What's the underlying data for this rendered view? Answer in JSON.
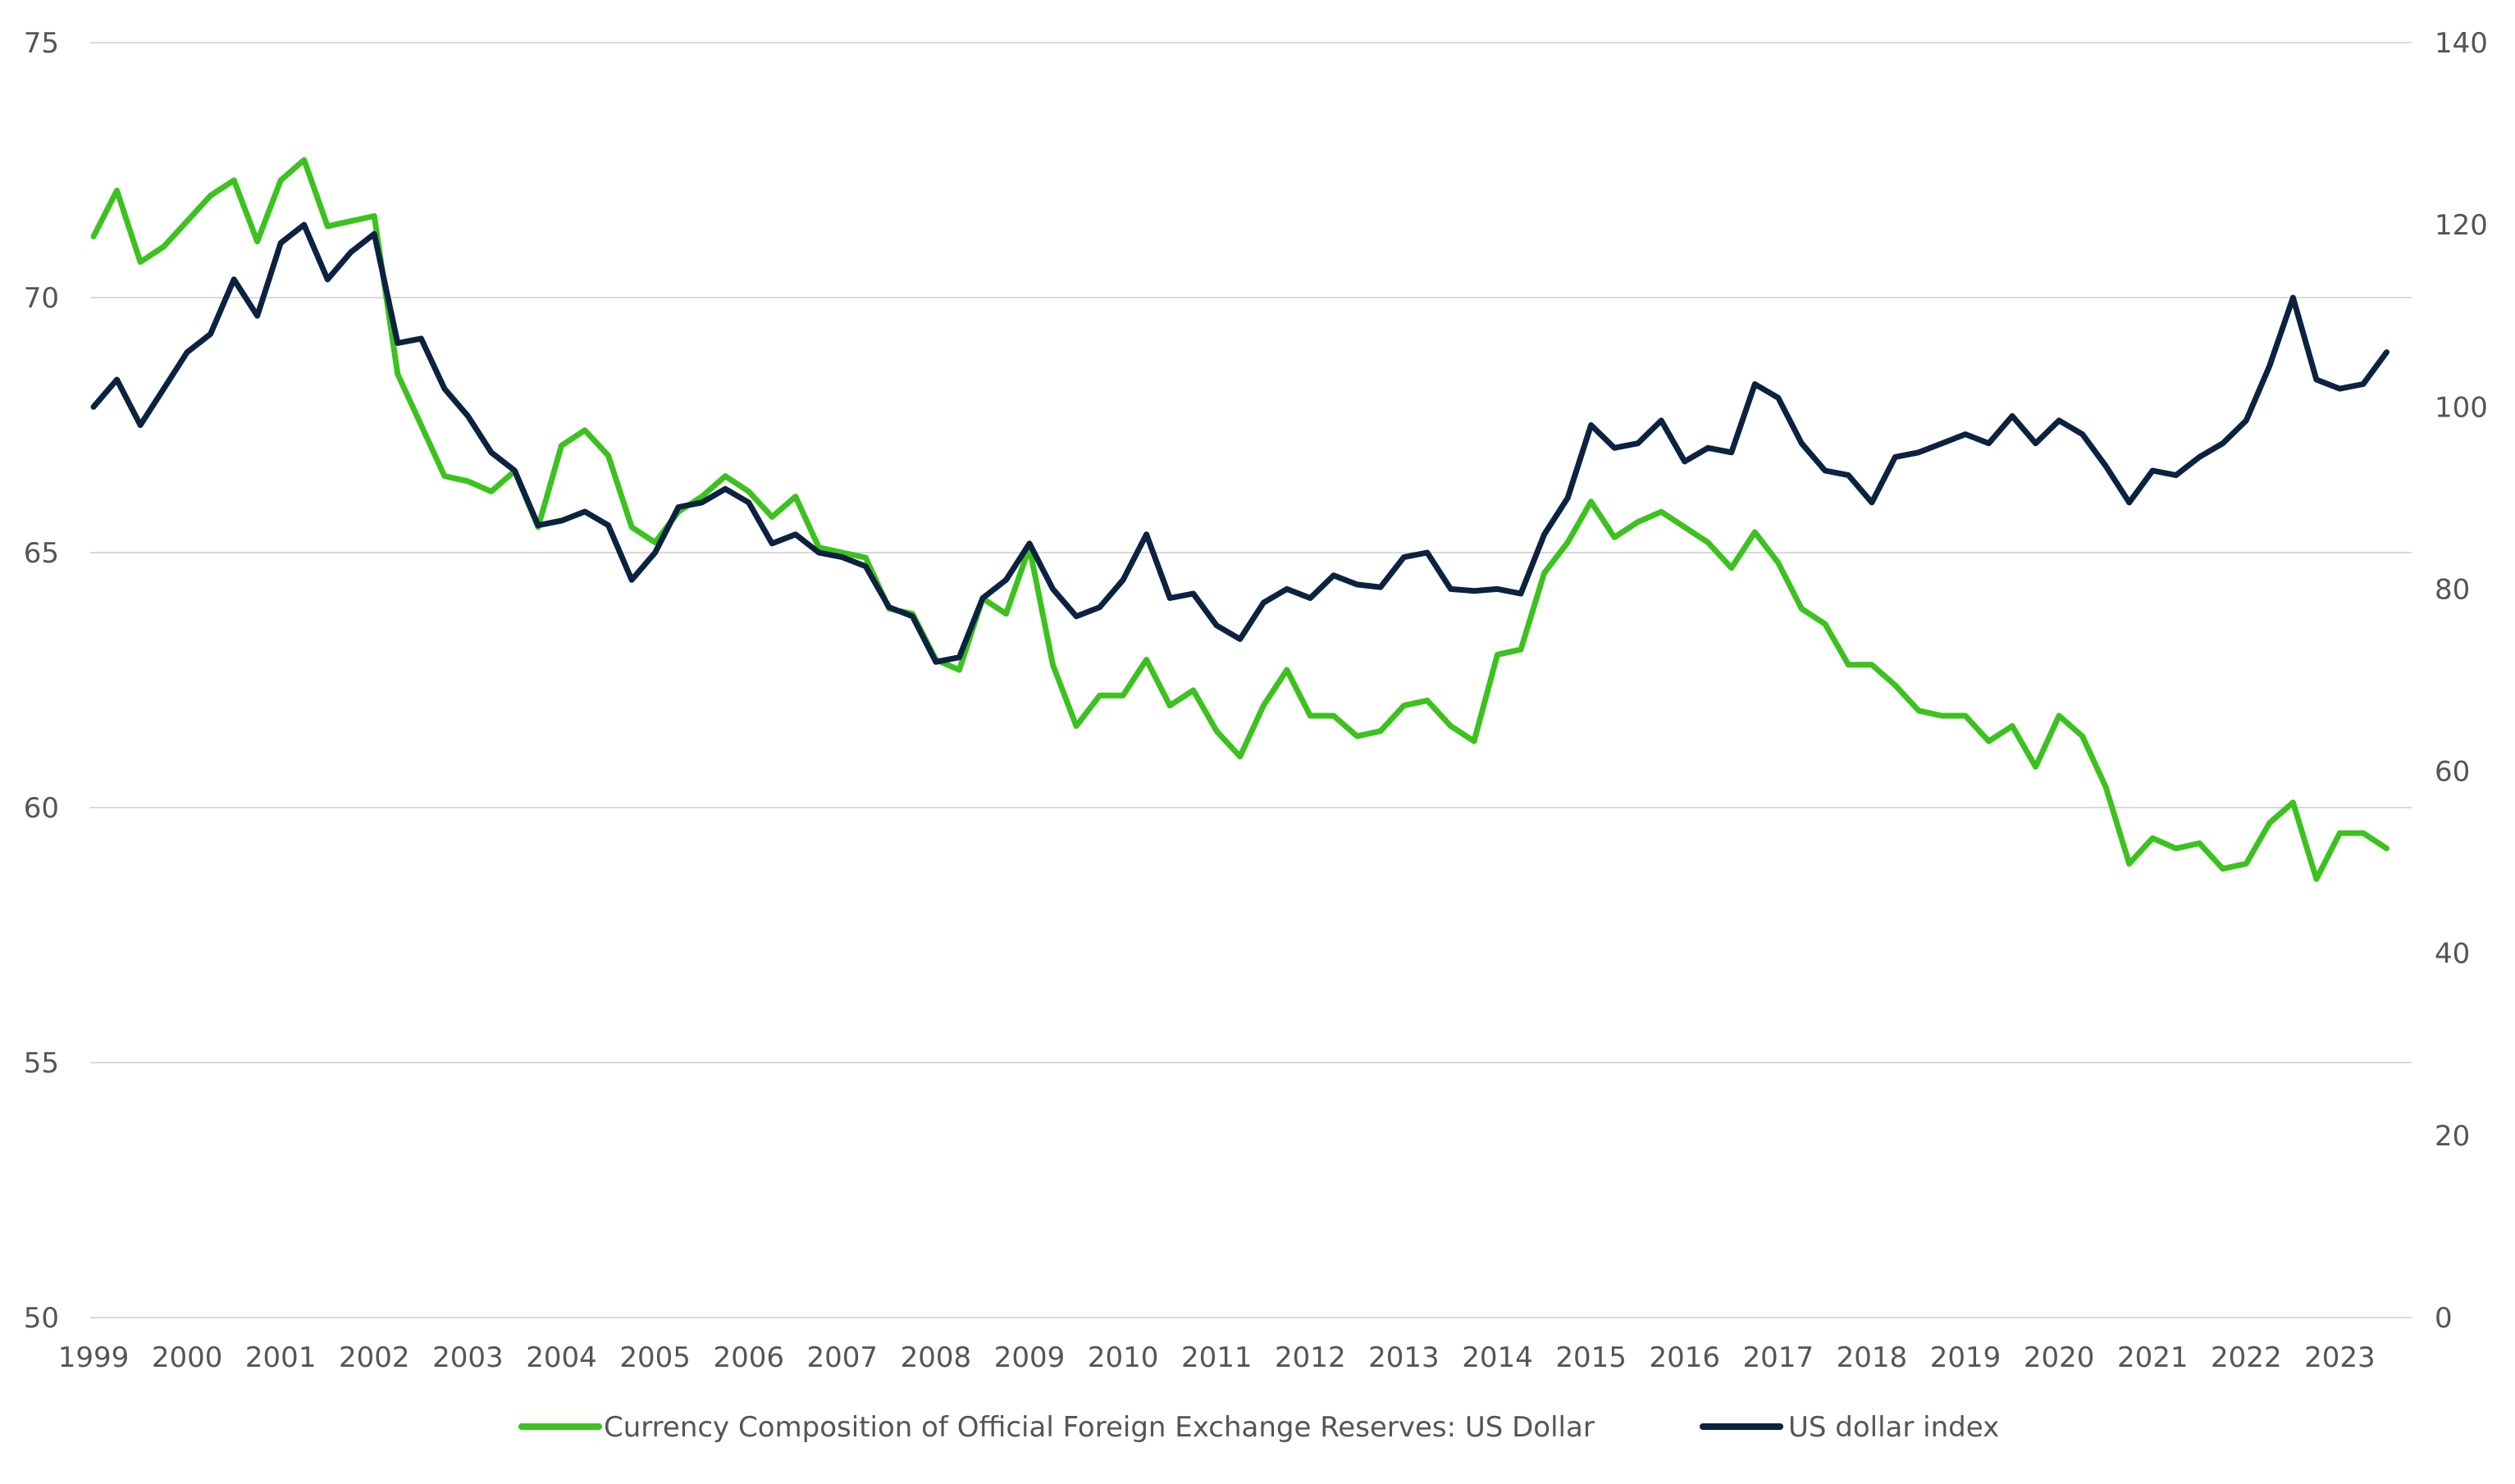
{
  "chart_data": {
    "type": "line",
    "title": "",
    "xlabel": "",
    "ylabel_left": "",
    "ylabel_right": "",
    "y_left": {
      "min": 50,
      "max": 75,
      "ticks": [
        50,
        55,
        60,
        65,
        70,
        75
      ]
    },
    "y_right": {
      "min": 0,
      "max": 140,
      "ticks": [
        0,
        20,
        40,
        60,
        80,
        100,
        120,
        140
      ]
    },
    "x_ticks": [
      "1999",
      "2000",
      "2001",
      "2002",
      "2003",
      "2004",
      "2005",
      "2006",
      "2007",
      "2008",
      "2009",
      "2010",
      "2011",
      "2012",
      "2013",
      "2014",
      "2015",
      "2016",
      "2017",
      "2018",
      "2019",
      "2020",
      "2021",
      "2022",
      "2023"
    ],
    "x_range": [
      1999.0,
      2023.75
    ],
    "grid": "horizontal",
    "legend_position": "bottom",
    "colors": {
      "green": "#3cc21e",
      "navy": "#0b2240",
      "grid": "#d9d9d9",
      "axis_text": "#555555"
    },
    "series": [
      {
        "name": "Currency Composition of Official Foreign Exchange Reserves: US Dollar",
        "axis": "left",
        "color": "#3cc21e",
        "x_start": 1999.0,
        "x_step": 0.25,
        "values": [
          71.2,
          72.1,
          70.7,
          71.0,
          71.5,
          72.0,
          72.3,
          71.1,
          72.3,
          72.7,
          71.4,
          71.5,
          71.6,
          68.5,
          67.5,
          66.5,
          66.4,
          66.2,
          66.6,
          65.5,
          67.1,
          67.4,
          66.9,
          65.5,
          65.2,
          65.8,
          66.1,
          66.5,
          66.2,
          65.7,
          66.1,
          65.1,
          65.0,
          64.9,
          63.9,
          63.8,
          62.9,
          62.7,
          64.1,
          63.8,
          65.1,
          62.8,
          61.6,
          62.2,
          62.2,
          62.9,
          62.0,
          62.3,
          61.5,
          61.0,
          62.0,
          62.7,
          61.8,
          61.8,
          61.4,
          61.5,
          62.0,
          62.1,
          61.6,
          61.3,
          63.0,
          63.1,
          64.6,
          65.2,
          66.0,
          65.3,
          65.6,
          65.8,
          65.5,
          65.2,
          64.7,
          65.4,
          64.8,
          63.9,
          63.6,
          62.8,
          62.8,
          62.4,
          61.9,
          61.8,
          61.8,
          61.3,
          61.6,
          60.8,
          61.8,
          61.4,
          60.4,
          58.9,
          59.4,
          59.2,
          59.3,
          58.8,
          58.9,
          59.7,
          60.1,
          58.6,
          59.5,
          59.5,
          59.2
        ]
      },
      {
        "name": "US dollar index",
        "axis": "right",
        "color": "#0b2240",
        "x_start": 1999.0,
        "x_step": 0.25,
        "values": [
          100,
          103,
          98,
          102,
          106,
          108,
          114,
          110,
          118,
          120,
          114,
          117,
          119,
          107,
          107.5,
          102,
          99,
          95,
          93,
          87,
          87.5,
          88.5,
          87,
          81,
          84,
          89,
          89.5,
          91,
          89.5,
          85,
          86,
          84,
          83.5,
          82.5,
          78,
          77,
          72,
          72.5,
          79,
          81,
          85,
          80,
          77,
          78,
          81,
          86,
          79,
          79.5,
          76,
          74.5,
          78.5,
          80,
          79,
          81.5,
          80.5,
          80.2,
          83.5,
          84,
          80,
          79.8,
          80,
          79.5,
          86,
          90,
          98,
          95.5,
          96,
          98.5,
          94,
          95.5,
          95,
          102.5,
          101,
          96,
          93,
          92.5,
          89.5,
          94.5,
          95,
          96,
          97,
          96,
          99,
          96,
          98.5,
          97,
          93.5,
          89.5,
          93,
          92.5,
          94.5,
          96,
          98.5,
          104.5,
          112,
          103,
          102,
          102.5,
          106
        ]
      }
    ]
  }
}
